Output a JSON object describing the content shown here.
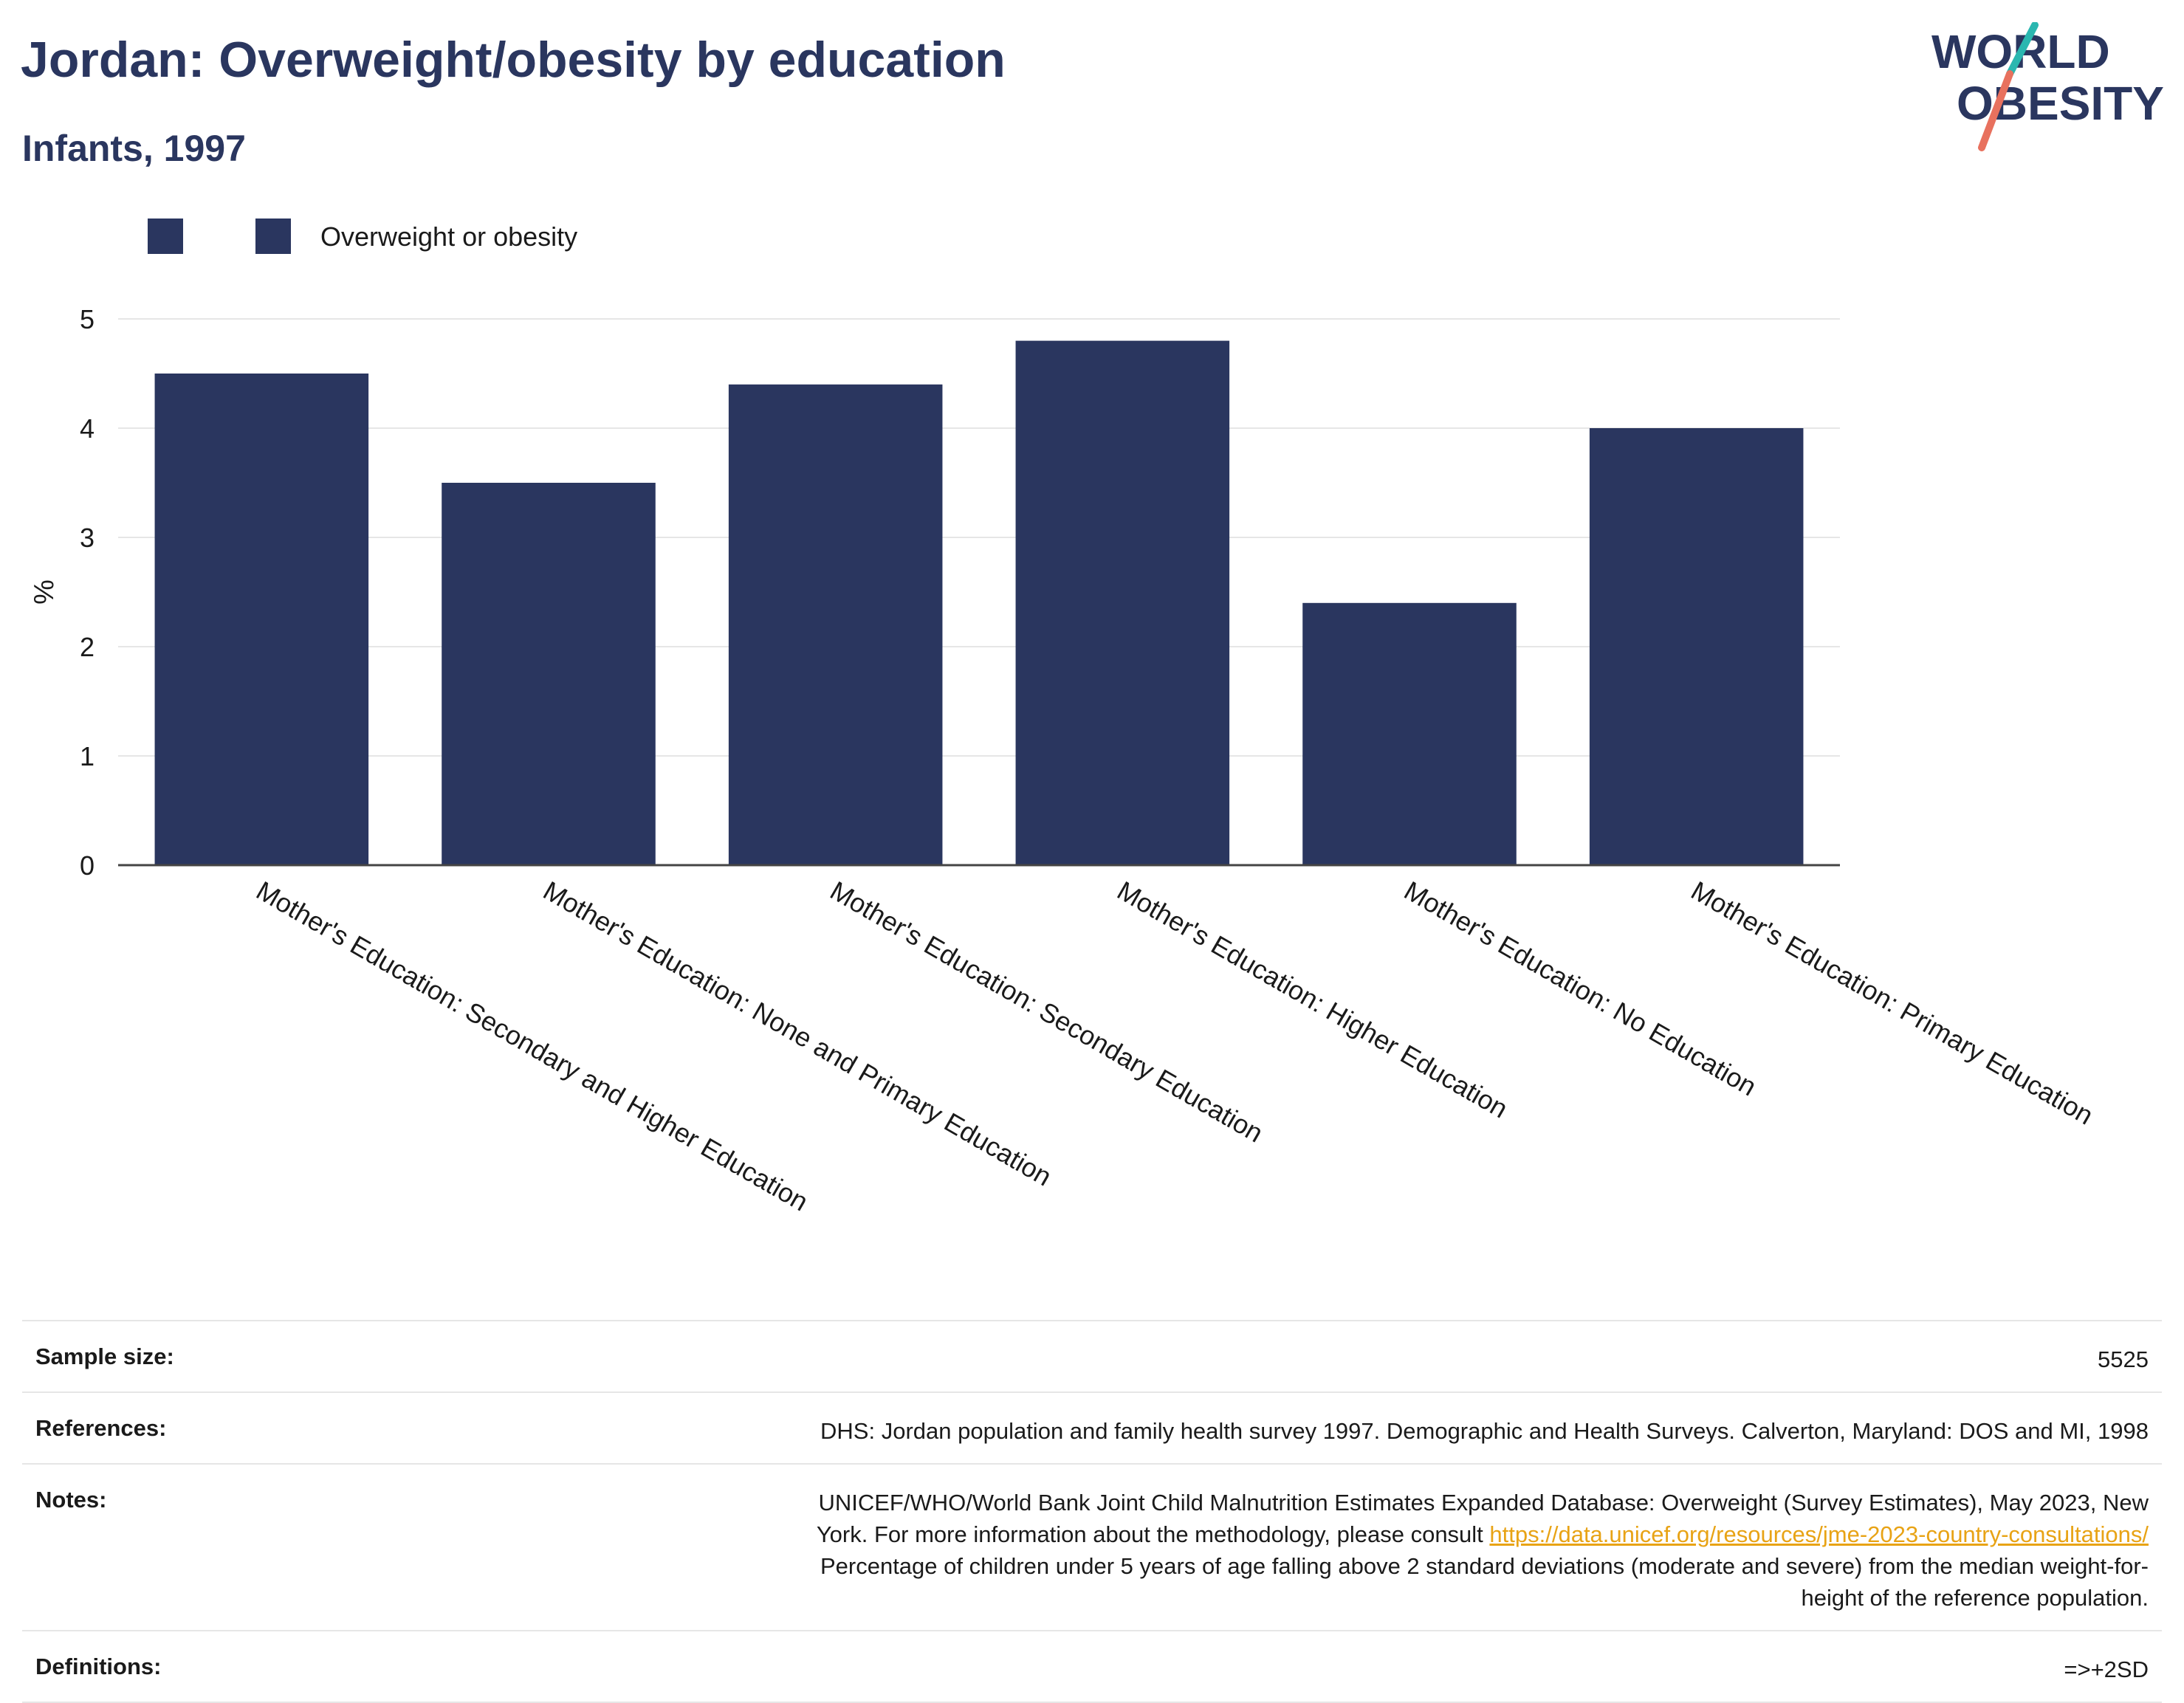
{
  "header": {
    "title": "Jordan: Overweight/obesity by education",
    "subtitle": "Infants, 1997"
  },
  "logo": {
    "line1": "WORLD",
    "line2": "OBESITY",
    "text_color": "#2a365f",
    "accent_teal": "#2ab7b0",
    "accent_coral": "#e8715e"
  },
  "legend": {
    "items": [
      {
        "label": "",
        "color": "#2a365f"
      },
      {
        "label": "Overweight or obesity",
        "color": "#2a365f"
      }
    ]
  },
  "chart_data": {
    "type": "bar",
    "categories": [
      "Mother's Education: Secondary and Higher Education",
      "Mother's Education: None and Primary Education",
      "Mother's Education: Secondary Education",
      "Mother's Education: Higher Education",
      "Mother's Education: No Education",
      "Mother's Education: Primary Education"
    ],
    "series": [
      {
        "name": "Overweight or obesity",
        "values": [
          4.5,
          3.5,
          4.4,
          4.8,
          2.4,
          4.0
        ]
      }
    ],
    "ylabel": "%",
    "ylim": [
      0,
      5
    ],
    "yticks": [
      0,
      1,
      2,
      3,
      4,
      5
    ],
    "grid": true,
    "bar_color": "#2a365f"
  },
  "footer": {
    "sample_size_label": "Sample size:",
    "sample_size_value": "5525",
    "references_label": "References:",
    "references_value": "DHS: Jordan population and family health survey 1997. Demographic and Health Surveys. Calverton, Maryland: DOS and MI, 1998",
    "notes_label": "Notes:",
    "notes_line1": "UNICEF/WHO/World Bank Joint Child Malnutrition Estimates Expanded Database: Overweight (Survey Estimates), May 2023, New",
    "notes_line2_pre": "York. For more information about the methodology, please consult ",
    "notes_link": "https://data.unicef.org/resources/jme-2023-country-consultations/",
    "notes_line3": "Percentage of children under 5 years of age falling above 2 standard deviations (moderate and severe) from the median weight-for-",
    "notes_line4": "height of the reference population.",
    "definitions_label": "Definitions:",
    "definitions_value": "=>+2SD"
  }
}
